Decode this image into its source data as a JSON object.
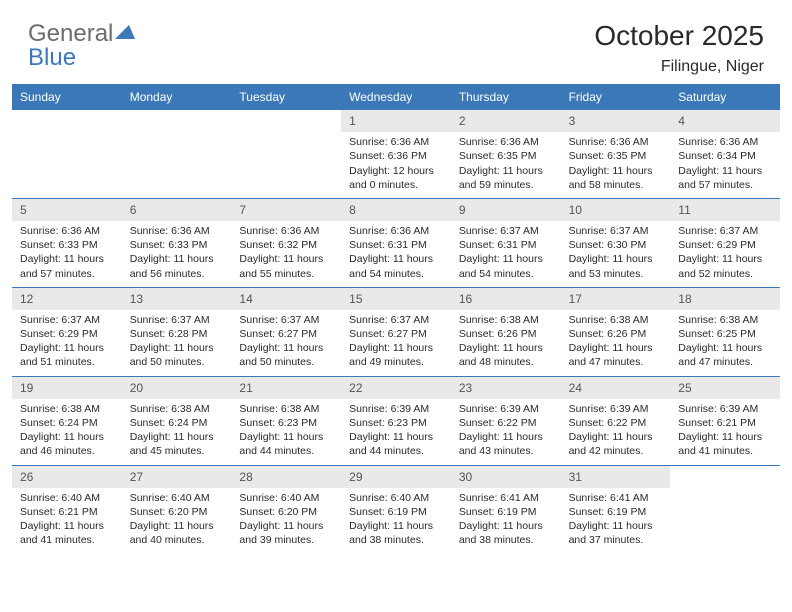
{
  "logo": {
    "general": "General",
    "blue": "Blue"
  },
  "title": "October 2025",
  "location": "Filingue, Niger",
  "colors": {
    "header_bg": "#3b78b8",
    "header_text": "#ffffff",
    "daynum_bg": "#e9e9e9",
    "divider": "#3b78b8",
    "text": "#2a2a2a",
    "logo_gray": "#6d6d6d",
    "logo_blue": "#3b78b8"
  },
  "day_names": [
    "Sunday",
    "Monday",
    "Tuesday",
    "Wednesday",
    "Thursday",
    "Friday",
    "Saturday"
  ],
  "weeks": [
    [
      null,
      null,
      null,
      {
        "n": "1",
        "sr": "Sunrise: 6:36 AM",
        "ss": "Sunset: 6:36 PM",
        "dl": "Daylight: 12 hours and 0 minutes."
      },
      {
        "n": "2",
        "sr": "Sunrise: 6:36 AM",
        "ss": "Sunset: 6:35 PM",
        "dl": "Daylight: 11 hours and 59 minutes."
      },
      {
        "n": "3",
        "sr": "Sunrise: 6:36 AM",
        "ss": "Sunset: 6:35 PM",
        "dl": "Daylight: 11 hours and 58 minutes."
      },
      {
        "n": "4",
        "sr": "Sunrise: 6:36 AM",
        "ss": "Sunset: 6:34 PM",
        "dl": "Daylight: 11 hours and 57 minutes."
      }
    ],
    [
      {
        "n": "5",
        "sr": "Sunrise: 6:36 AM",
        "ss": "Sunset: 6:33 PM",
        "dl": "Daylight: 11 hours and 57 minutes."
      },
      {
        "n": "6",
        "sr": "Sunrise: 6:36 AM",
        "ss": "Sunset: 6:33 PM",
        "dl": "Daylight: 11 hours and 56 minutes."
      },
      {
        "n": "7",
        "sr": "Sunrise: 6:36 AM",
        "ss": "Sunset: 6:32 PM",
        "dl": "Daylight: 11 hours and 55 minutes."
      },
      {
        "n": "8",
        "sr": "Sunrise: 6:36 AM",
        "ss": "Sunset: 6:31 PM",
        "dl": "Daylight: 11 hours and 54 minutes."
      },
      {
        "n": "9",
        "sr": "Sunrise: 6:37 AM",
        "ss": "Sunset: 6:31 PM",
        "dl": "Daylight: 11 hours and 54 minutes."
      },
      {
        "n": "10",
        "sr": "Sunrise: 6:37 AM",
        "ss": "Sunset: 6:30 PM",
        "dl": "Daylight: 11 hours and 53 minutes."
      },
      {
        "n": "11",
        "sr": "Sunrise: 6:37 AM",
        "ss": "Sunset: 6:29 PM",
        "dl": "Daylight: 11 hours and 52 minutes."
      }
    ],
    [
      {
        "n": "12",
        "sr": "Sunrise: 6:37 AM",
        "ss": "Sunset: 6:29 PM",
        "dl": "Daylight: 11 hours and 51 minutes."
      },
      {
        "n": "13",
        "sr": "Sunrise: 6:37 AM",
        "ss": "Sunset: 6:28 PM",
        "dl": "Daylight: 11 hours and 50 minutes."
      },
      {
        "n": "14",
        "sr": "Sunrise: 6:37 AM",
        "ss": "Sunset: 6:27 PM",
        "dl": "Daylight: 11 hours and 50 minutes."
      },
      {
        "n": "15",
        "sr": "Sunrise: 6:37 AM",
        "ss": "Sunset: 6:27 PM",
        "dl": "Daylight: 11 hours and 49 minutes."
      },
      {
        "n": "16",
        "sr": "Sunrise: 6:38 AM",
        "ss": "Sunset: 6:26 PM",
        "dl": "Daylight: 11 hours and 48 minutes."
      },
      {
        "n": "17",
        "sr": "Sunrise: 6:38 AM",
        "ss": "Sunset: 6:26 PM",
        "dl": "Daylight: 11 hours and 47 minutes."
      },
      {
        "n": "18",
        "sr": "Sunrise: 6:38 AM",
        "ss": "Sunset: 6:25 PM",
        "dl": "Daylight: 11 hours and 47 minutes."
      }
    ],
    [
      {
        "n": "19",
        "sr": "Sunrise: 6:38 AM",
        "ss": "Sunset: 6:24 PM",
        "dl": "Daylight: 11 hours and 46 minutes."
      },
      {
        "n": "20",
        "sr": "Sunrise: 6:38 AM",
        "ss": "Sunset: 6:24 PM",
        "dl": "Daylight: 11 hours and 45 minutes."
      },
      {
        "n": "21",
        "sr": "Sunrise: 6:38 AM",
        "ss": "Sunset: 6:23 PM",
        "dl": "Daylight: 11 hours and 44 minutes."
      },
      {
        "n": "22",
        "sr": "Sunrise: 6:39 AM",
        "ss": "Sunset: 6:23 PM",
        "dl": "Daylight: 11 hours and 44 minutes."
      },
      {
        "n": "23",
        "sr": "Sunrise: 6:39 AM",
        "ss": "Sunset: 6:22 PM",
        "dl": "Daylight: 11 hours and 43 minutes."
      },
      {
        "n": "24",
        "sr": "Sunrise: 6:39 AM",
        "ss": "Sunset: 6:22 PM",
        "dl": "Daylight: 11 hours and 42 minutes."
      },
      {
        "n": "25",
        "sr": "Sunrise: 6:39 AM",
        "ss": "Sunset: 6:21 PM",
        "dl": "Daylight: 11 hours and 41 minutes."
      }
    ],
    [
      {
        "n": "26",
        "sr": "Sunrise: 6:40 AM",
        "ss": "Sunset: 6:21 PM",
        "dl": "Daylight: 11 hours and 41 minutes."
      },
      {
        "n": "27",
        "sr": "Sunrise: 6:40 AM",
        "ss": "Sunset: 6:20 PM",
        "dl": "Daylight: 11 hours and 40 minutes."
      },
      {
        "n": "28",
        "sr": "Sunrise: 6:40 AM",
        "ss": "Sunset: 6:20 PM",
        "dl": "Daylight: 11 hours and 39 minutes."
      },
      {
        "n": "29",
        "sr": "Sunrise: 6:40 AM",
        "ss": "Sunset: 6:19 PM",
        "dl": "Daylight: 11 hours and 38 minutes."
      },
      {
        "n": "30",
        "sr": "Sunrise: 6:41 AM",
        "ss": "Sunset: 6:19 PM",
        "dl": "Daylight: 11 hours and 38 minutes."
      },
      {
        "n": "31",
        "sr": "Sunrise: 6:41 AM",
        "ss": "Sunset: 6:19 PM",
        "dl": "Daylight: 11 hours and 37 minutes."
      },
      null
    ]
  ]
}
